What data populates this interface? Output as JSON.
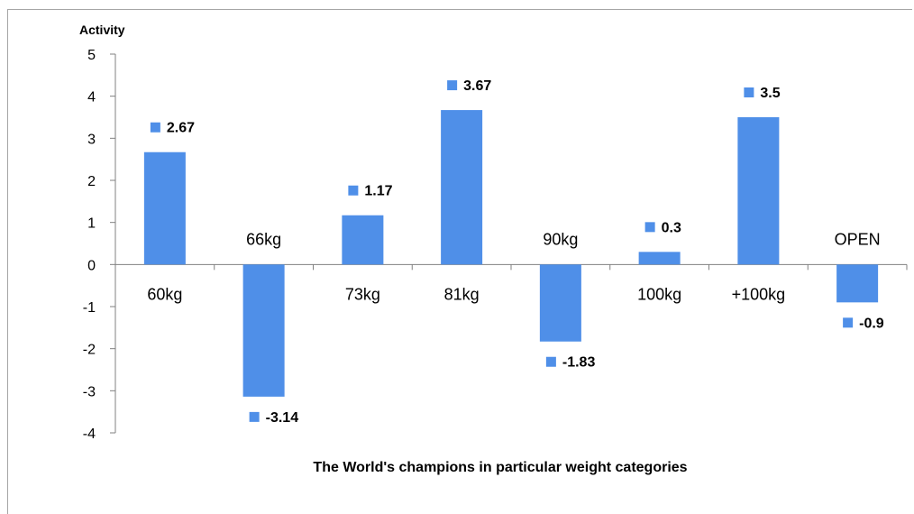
{
  "chart_data": {
    "type": "bar",
    "title": "The World's champions  in particular  weight categories",
    "xlabel": "",
    "ylabel": "Activity",
    "categories": [
      "60kg",
      "66kg",
      "73kg",
      "81kg",
      "90kg",
      "100kg",
      "+100kg",
      "OPEN"
    ],
    "values": [
      2.67,
      -3.14,
      1.17,
      3.67,
      -1.83,
      0.3,
      3.5,
      -0.9
    ],
    "data_labels": [
      "2.67",
      "-3.14",
      "1.17",
      "3.67",
      "-1.83",
      "0.3",
      "3.5",
      "-0.9"
    ],
    "yticks": [
      "5",
      "4",
      "3",
      "2",
      "1",
      "0",
      "-1",
      "-2",
      "-3",
      "-4"
    ],
    "ylim": [
      -4,
      5
    ],
    "grid": false,
    "legend": "none",
    "bar_color": "#4f8fe8",
    "axis_color": "#808080"
  }
}
